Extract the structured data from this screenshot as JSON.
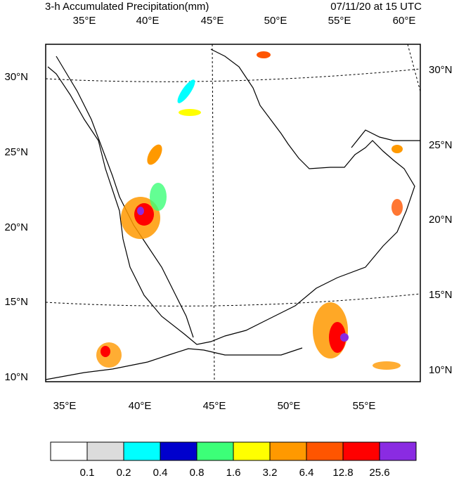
{
  "header": {
    "title": "3-h Accumulated Precipitation(mm)",
    "time": "07/11/20 at 15 UTC"
  },
  "map": {
    "top_labels": [
      "35°E",
      "40°E",
      "45°E",
      "50°E",
      "55°E",
      "60°E"
    ],
    "bottom_labels": [
      "35°E",
      "40°E",
      "45°E",
      "50°E",
      "55°E"
    ],
    "left_labels": [
      "30°N",
      "25°N",
      "20°N",
      "15°N",
      "10°N"
    ],
    "right_labels": [
      "30°N",
      "25°N",
      "20°N",
      "15°N",
      "10°N"
    ]
  },
  "colorbar": {
    "colors": [
      "#ffffff",
      "#dcdcdc",
      "#00ffff",
      "#0000cd",
      "#3cff78",
      "#ffff00",
      "#ff9900",
      "#ff5500",
      "#ff0000",
      "#8a2be2"
    ],
    "labels": [
      "0.1",
      "0.2",
      "0.4",
      "0.8",
      "1.6",
      "3.2",
      "6.4",
      "12.8",
      "25.6"
    ]
  }
}
